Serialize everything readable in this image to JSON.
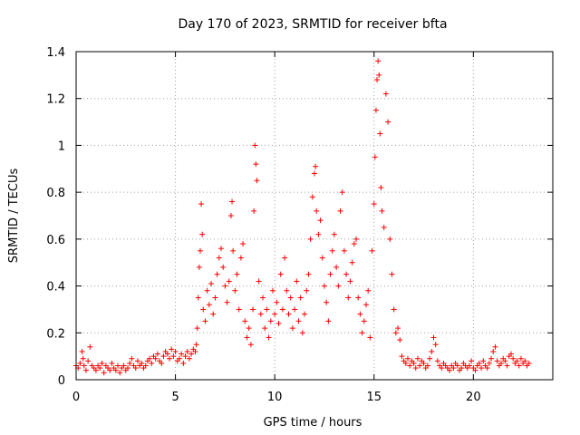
{
  "chart_data": {
    "type": "scatter",
    "title": "Day 170 of 2023, SRMTID for receiver bfta",
    "xlabel": "GPS time / hours",
    "ylabel": "SRMTID / TECUs",
    "xlim": [
      0,
      24
    ],
    "ylim": [
      0,
      1.4
    ],
    "xticks": [
      0,
      5,
      10,
      15,
      20
    ],
    "xtick_labels": [
      "0",
      "5",
      "10",
      "15",
      "20"
    ],
    "yticks": [
      0,
      0.2,
      0.4,
      0.6,
      0.8,
      1,
      1.2,
      1.4
    ],
    "ytick_labels": [
      "0",
      "0.2",
      "0.4",
      "0.6",
      "0.8",
      "1",
      "1.2",
      "1.4"
    ],
    "grid": true,
    "marker": "+",
    "color": "#ff0000",
    "series": [
      {
        "name": "SRMTID",
        "points": [
          [
            0.0,
            0.06
          ],
          [
            0.1,
            0.05
          ],
          [
            0.2,
            0.07
          ],
          [
            0.3,
            0.12
          ],
          [
            0.35,
            0.09
          ],
          [
            0.4,
            0.06
          ],
          [
            0.5,
            0.04
          ],
          [
            0.6,
            0.08
          ],
          [
            0.7,
            0.14
          ],
          [
            0.8,
            0.06
          ],
          [
            0.9,
            0.05
          ],
          [
            1.0,
            0.04
          ],
          [
            1.1,
            0.06
          ],
          [
            1.2,
            0.05
          ],
          [
            1.3,
            0.07
          ],
          [
            1.4,
            0.03
          ],
          [
            1.5,
            0.06
          ],
          [
            1.6,
            0.05
          ],
          [
            1.7,
            0.04
          ],
          [
            1.8,
            0.07
          ],
          [
            1.9,
            0.05
          ],
          [
            2.0,
            0.04
          ],
          [
            2.1,
            0.06
          ],
          [
            2.2,
            0.03
          ],
          [
            2.3,
            0.05
          ],
          [
            2.4,
            0.06
          ],
          [
            2.5,
            0.04
          ],
          [
            2.6,
            0.05
          ],
          [
            2.7,
            0.07
          ],
          [
            2.8,
            0.09
          ],
          [
            2.9,
            0.06
          ],
          [
            3.0,
            0.05
          ],
          [
            3.1,
            0.08
          ],
          [
            3.2,
            0.06
          ],
          [
            3.3,
            0.07
          ],
          [
            3.4,
            0.05
          ],
          [
            3.5,
            0.06
          ],
          [
            3.6,
            0.08
          ],
          [
            3.7,
            0.09
          ],
          [
            3.8,
            0.07
          ],
          [
            3.9,
            0.1
          ],
          [
            4.0,
            0.09
          ],
          [
            4.1,
            0.11
          ],
          [
            4.2,
            0.08
          ],
          [
            4.3,
            0.07
          ],
          [
            4.4,
            0.1
          ],
          [
            4.5,
            0.12
          ],
          [
            4.6,
            0.11
          ],
          [
            4.7,
            0.09
          ],
          [
            4.8,
            0.13
          ],
          [
            4.9,
            0.1
          ],
          [
            5.0,
            0.12
          ],
          [
            5.1,
            0.08
          ],
          [
            5.2,
            0.09
          ],
          [
            5.3,
            0.11
          ],
          [
            5.4,
            0.07
          ],
          [
            5.5,
            0.1
          ],
          [
            5.6,
            0.12
          ],
          [
            5.7,
            0.09
          ],
          [
            5.8,
            0.11
          ],
          [
            5.9,
            0.13
          ],
          [
            6.0,
            0.12
          ],
          [
            6.05,
            0.15
          ],
          [
            6.1,
            0.22
          ],
          [
            6.15,
            0.35
          ],
          [
            6.2,
            0.48
          ],
          [
            6.25,
            0.55
          ],
          [
            6.3,
            0.75
          ],
          [
            6.35,
            0.62
          ],
          [
            6.4,
            0.3
          ],
          [
            6.5,
            0.25
          ],
          [
            6.6,
            0.38
          ],
          [
            6.7,
            0.32
          ],
          [
            6.8,
            0.41
          ],
          [
            6.9,
            0.28
          ],
          [
            7.0,
            0.35
          ],
          [
            7.1,
            0.45
          ],
          [
            7.2,
            0.52
          ],
          [
            7.3,
            0.56
          ],
          [
            7.4,
            0.48
          ],
          [
            7.5,
            0.4
          ],
          [
            7.6,
            0.33
          ],
          [
            7.7,
            0.42
          ],
          [
            7.8,
            0.7
          ],
          [
            7.85,
            0.76
          ],
          [
            7.9,
            0.55
          ],
          [
            8.0,
            0.38
          ],
          [
            8.1,
            0.45
          ],
          [
            8.2,
            0.3
          ],
          [
            8.3,
            0.52
          ],
          [
            8.4,
            0.58
          ],
          [
            8.5,
            0.25
          ],
          [
            8.6,
            0.18
          ],
          [
            8.7,
            0.22
          ],
          [
            8.8,
            0.15
          ],
          [
            8.9,
            0.3
          ],
          [
            8.95,
            0.72
          ],
          [
            9.0,
            1.0
          ],
          [
            9.05,
            0.92
          ],
          [
            9.1,
            0.85
          ],
          [
            9.2,
            0.42
          ],
          [
            9.3,
            0.28
          ],
          [
            9.4,
            0.35
          ],
          [
            9.5,
            0.22
          ],
          [
            9.6,
            0.3
          ],
          [
            9.7,
            0.18
          ],
          [
            9.8,
            0.25
          ],
          [
            9.9,
            0.38
          ],
          [
            10.0,
            0.28
          ],
          [
            10.1,
            0.33
          ],
          [
            10.2,
            0.24
          ],
          [
            10.3,
            0.45
          ],
          [
            10.4,
            0.3
          ],
          [
            10.5,
            0.52
          ],
          [
            10.6,
            0.38
          ],
          [
            10.7,
            0.28
          ],
          [
            10.8,
            0.35
          ],
          [
            10.9,
            0.22
          ],
          [
            11.0,
            0.3
          ],
          [
            11.1,
            0.42
          ],
          [
            11.2,
            0.25
          ],
          [
            11.3,
            0.35
          ],
          [
            11.4,
            0.2
          ],
          [
            11.5,
            0.28
          ],
          [
            11.6,
            0.38
          ],
          [
            11.7,
            0.45
          ],
          [
            11.8,
            0.6
          ],
          [
            11.9,
            0.78
          ],
          [
            12.0,
            0.88
          ],
          [
            12.05,
            0.91
          ],
          [
            12.1,
            0.72
          ],
          [
            12.2,
            0.62
          ],
          [
            12.3,
            0.68
          ],
          [
            12.4,
            0.52
          ],
          [
            12.5,
            0.4
          ],
          [
            12.6,
            0.33
          ],
          [
            12.7,
            0.25
          ],
          [
            12.8,
            0.45
          ],
          [
            12.9,
            0.55
          ],
          [
            13.0,
            0.62
          ],
          [
            13.1,
            0.48
          ],
          [
            13.2,
            0.4
          ],
          [
            13.3,
            0.72
          ],
          [
            13.4,
            0.8
          ],
          [
            13.5,
            0.55
          ],
          [
            13.6,
            0.45
          ],
          [
            13.7,
            0.35
          ],
          [
            13.8,
            0.42
          ],
          [
            13.9,
            0.5
          ],
          [
            14.0,
            0.58
          ],
          [
            14.1,
            0.6
          ],
          [
            14.2,
            0.35
          ],
          [
            14.3,
            0.28
          ],
          [
            14.4,
            0.2
          ],
          [
            14.5,
            0.25
          ],
          [
            14.6,
            0.32
          ],
          [
            14.7,
            0.38
          ],
          [
            14.8,
            0.18
          ],
          [
            14.9,
            0.55
          ],
          [
            15.0,
            0.75
          ],
          [
            15.05,
            0.95
          ],
          [
            15.1,
            1.15
          ],
          [
            15.15,
            1.28
          ],
          [
            15.2,
            1.36
          ],
          [
            15.25,
            1.3
          ],
          [
            15.3,
            1.05
          ],
          [
            15.35,
            0.82
          ],
          [
            15.4,
            0.72
          ],
          [
            15.5,
            0.65
          ],
          [
            15.6,
            1.22
          ],
          [
            15.7,
            1.1
          ],
          [
            15.8,
            0.6
          ],
          [
            15.9,
            0.45
          ],
          [
            16.0,
            0.3
          ],
          [
            16.1,
            0.2
          ],
          [
            16.2,
            0.22
          ],
          [
            16.3,
            0.17
          ],
          [
            16.4,
            0.1
          ],
          [
            16.5,
            0.08
          ],
          [
            16.6,
            0.07
          ],
          [
            16.7,
            0.09
          ],
          [
            16.8,
            0.06
          ],
          [
            16.9,
            0.08
          ],
          [
            17.0,
            0.07
          ],
          [
            17.1,
            0.05
          ],
          [
            17.2,
            0.09
          ],
          [
            17.3,
            0.06
          ],
          [
            17.4,
            0.08
          ],
          [
            17.5,
            0.07
          ],
          [
            17.6,
            0.05
          ],
          [
            17.7,
            0.06
          ],
          [
            17.8,
            0.09
          ],
          [
            17.9,
            0.12
          ],
          [
            18.0,
            0.18
          ],
          [
            18.1,
            0.15
          ],
          [
            18.2,
            0.08
          ],
          [
            18.3,
            0.06
          ],
          [
            18.4,
            0.05
          ],
          [
            18.5,
            0.07
          ],
          [
            18.6,
            0.06
          ],
          [
            18.7,
            0.05
          ],
          [
            18.8,
            0.04
          ],
          [
            18.9,
            0.06
          ],
          [
            19.0,
            0.05
          ],
          [
            19.1,
            0.07
          ],
          [
            19.2,
            0.06
          ],
          [
            19.3,
            0.04
          ],
          [
            19.4,
            0.05
          ],
          [
            19.5,
            0.07
          ],
          [
            19.6,
            0.06
          ],
          [
            19.7,
            0.05
          ],
          [
            19.8,
            0.06
          ],
          [
            19.9,
            0.08
          ],
          [
            20.0,
            0.05
          ],
          [
            20.1,
            0.04
          ],
          [
            20.2,
            0.06
          ],
          [
            20.3,
            0.07
          ],
          [
            20.4,
            0.05
          ],
          [
            20.5,
            0.08
          ],
          [
            20.6,
            0.06
          ],
          [
            20.7,
            0.05
          ],
          [
            20.8,
            0.07
          ],
          [
            20.9,
            0.09
          ],
          [
            21.0,
            0.12
          ],
          [
            21.1,
            0.14
          ],
          [
            21.2,
            0.08
          ],
          [
            21.3,
            0.06
          ],
          [
            21.4,
            0.07
          ],
          [
            21.5,
            0.09
          ],
          [
            21.6,
            0.08
          ],
          [
            21.7,
            0.06
          ],
          [
            21.8,
            0.1
          ],
          [
            21.9,
            0.11
          ],
          [
            22.0,
            0.09
          ],
          [
            22.1,
            0.07
          ],
          [
            22.2,
            0.08
          ],
          [
            22.3,
            0.06
          ],
          [
            22.4,
            0.09
          ],
          [
            22.5,
            0.07
          ],
          [
            22.6,
            0.08
          ],
          [
            22.7,
            0.06
          ],
          [
            22.8,
            0.07
          ]
        ]
      }
    ]
  }
}
